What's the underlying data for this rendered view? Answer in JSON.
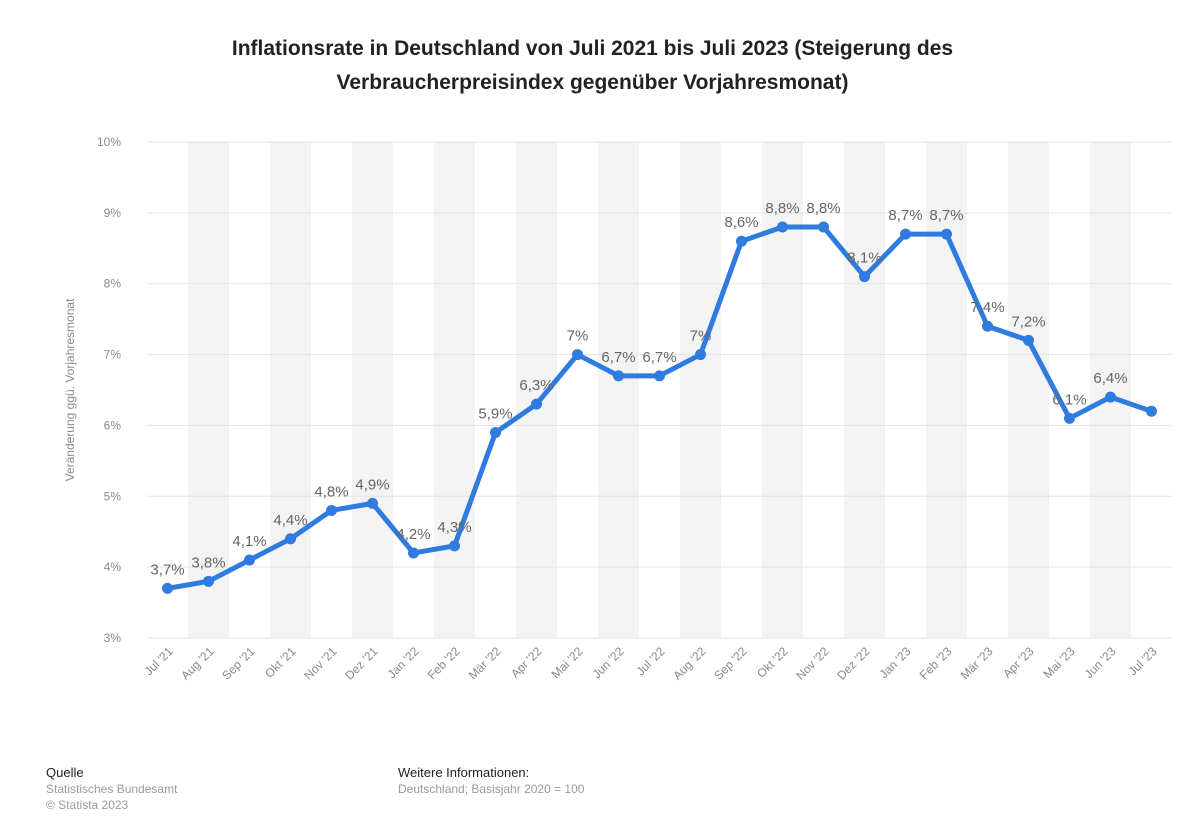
{
  "title": {
    "line1": "Inflationsrate in Deutschland von Juli 2021 bis Juli 2023 (Steigerung des",
    "line2": "Verbraucherpreisindex gegenüber Vorjahresmonat)"
  },
  "footer": {
    "source_heading": "Quelle",
    "source_lines": [
      "Statistisches Bundesamt",
      "© Statista 2023"
    ],
    "info_heading": "Weitere Informationen:",
    "info_lines": [
      "Deutschland; Basisjahr 2020 = 100"
    ]
  },
  "colors": {
    "line": "#2f7be0",
    "band": "#f3f3f3",
    "grid": "#e3e3e3",
    "tick_text": "#8a8a8a",
    "label_text": "#666666"
  },
  "chart_data": {
    "type": "line",
    "title": "Inflationsrate in Deutschland von Juli 2021 bis Juli 2023 (Steigerung des Verbraucherpreisindex gegenüber Vorjahresmonat)",
    "xlabel": "",
    "ylabel": "Veränderung ggü. Vorjahresmonat",
    "ylim": [
      3,
      10
    ],
    "yticks": [
      3,
      4,
      5,
      6,
      7,
      8,
      9,
      10
    ],
    "ytick_labels": [
      "3%",
      "4%",
      "5%",
      "6%",
      "7%",
      "8%",
      "9%",
      "10%"
    ],
    "grid": true,
    "legend": "none",
    "categories": [
      "Jul '21",
      "Aug '21",
      "Sep '21",
      "Okt '21",
      "Nov '21",
      "Dez '21",
      "Jan '22",
      "Feb '22",
      "Mär '22",
      "Apr '22",
      "Mai '22",
      "Jun '22",
      "Jul '22",
      "Aug '22",
      "Sep '22",
      "Okt '22",
      "Nov '22",
      "Dez '22",
      "Jan '23",
      "Feb '23",
      "Mär '23",
      "Apr '23",
      "Mai '23",
      "Jun '23",
      "Jul '23"
    ],
    "series": [
      {
        "values": [
          3.7,
          3.8,
          4.1,
          4.4,
          4.8,
          4.9,
          4.2,
          4.3,
          5.9,
          6.3,
          7.0,
          6.7,
          6.7,
          7.0,
          8.6,
          8.8,
          8.8,
          8.1,
          8.7,
          8.7,
          7.4,
          7.2,
          6.1,
          6.4,
          6.2
        ],
        "data_labels": [
          "3,7%",
          "3,8%",
          "4,1%",
          "4,4%",
          "4,8%",
          "4,9%",
          "4,2%",
          "4,3%",
          "5,9%",
          "6,3%",
          "7%",
          "6,7%",
          "6,7%",
          "7%",
          "8,6%",
          "8,8%",
          "8,8%",
          "8,1%",
          "8,7%",
          "8,7%",
          "7,4%",
          "7,2%",
          "6,1%",
          "6,4%",
          ""
        ]
      }
    ]
  }
}
